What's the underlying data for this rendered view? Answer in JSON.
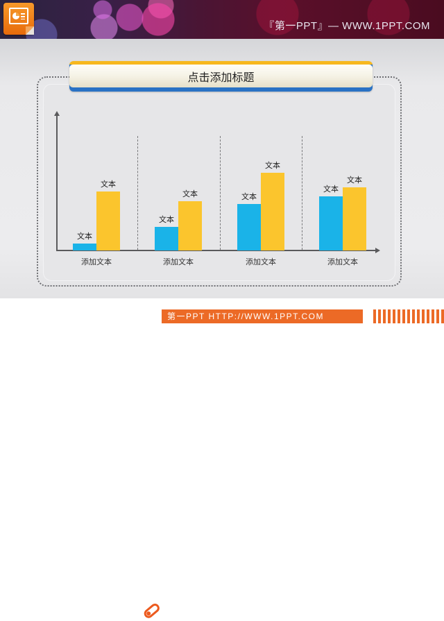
{
  "header": {
    "title": "『第一PPT』— WWW.1PPT.COM",
    "logo_icon": "powerpoint-icon"
  },
  "slide": {
    "title": "点击添加标题"
  },
  "footer": {
    "text": "第一PPT HTTP://WWW.1PPT.COM",
    "icon": "pencil-icon"
  },
  "colors": {
    "series_blue": "#1ab3e8",
    "series_yellow": "#fbc52d",
    "title_top": "#f7b81f",
    "title_bottom": "#2a72c4",
    "footer_orange": "#ec6a26"
  },
  "chart_data": {
    "type": "bar",
    "title": "点击添加标题",
    "xlabel": "",
    "ylabel": "",
    "categories": [
      "添加文本",
      "添加文本",
      "添加文本",
      "添加文本"
    ],
    "series": [
      {
        "name": "blue",
        "color": "#1ab3e8",
        "values": [
          10,
          34,
          67,
          78
        ],
        "labels": [
          "文本",
          "文本",
          "文本",
          "文本"
        ]
      },
      {
        "name": "yellow",
        "color": "#fbc52d",
        "values": [
          85,
          71,
          112,
          91
        ],
        "labels": [
          "文本",
          "文本",
          "文本",
          "文本"
        ]
      }
    ],
    "ylim": [
      0,
      195
    ],
    "grid": false,
    "separators": "dashed vertical lines between categories",
    "legend": "none",
    "axis_ticks": "none"
  }
}
